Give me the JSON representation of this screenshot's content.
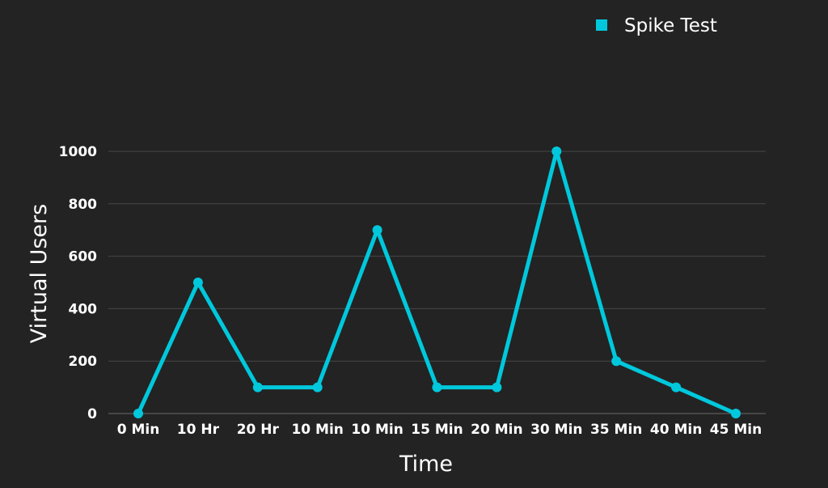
{
  "colors": {
    "background": "#232323",
    "series": "#00c8dc",
    "grid": "#474747",
    "text": "#ffffff"
  },
  "chart_data": {
    "type": "line",
    "title": "",
    "xlabel": "Time",
    "ylabel": "Virtual Users",
    "categories": [
      "0 Min",
      "10 Hr",
      "20 Hr",
      "10 Min",
      "10 Min",
      "15 Min",
      "20 Min",
      "30 Min",
      "35 Min",
      "40 Min",
      "45 Min"
    ],
    "series": [
      {
        "name": "Spike Test",
        "values": [
          0,
          500,
          100,
          100,
          700,
          100,
          100,
          1000,
          200,
          100,
          0
        ]
      }
    ],
    "ylim": [
      0,
      1000
    ],
    "yticks": [
      0,
      200,
      400,
      600,
      800,
      1000
    ],
    "grid": true,
    "legend_position": "top-right"
  }
}
